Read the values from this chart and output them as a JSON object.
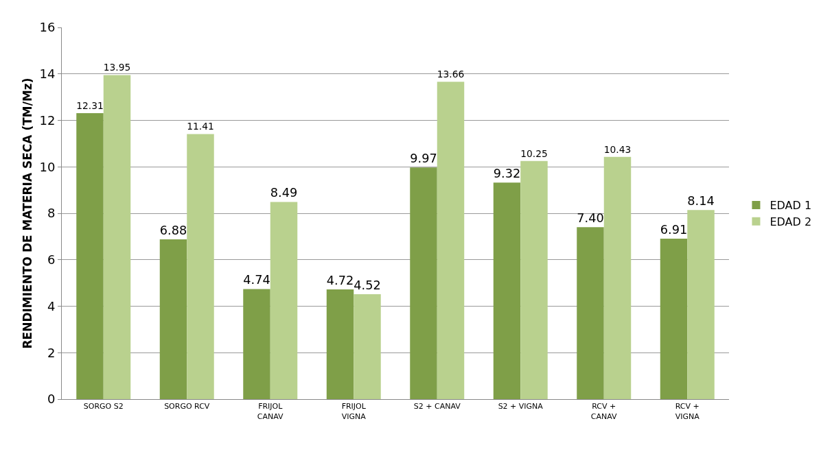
{
  "chart_data": {
    "type": "bar",
    "ylabel": "RENDIMIENTO DE MATERIA SECA (TM/Mz)",
    "categories": [
      "SORGO S2",
      "SORGO RCV",
      "FRIJOL CANAV",
      "FRIJOL VIGNA",
      "S2 + CANAV",
      "S2 + VIGNA",
      "RCV + CANAV",
      "RCV + VIGNA"
    ],
    "series": [
      {
        "name": "EDAD 1",
        "color": "#7f9f48",
        "values": [
          12.31,
          6.88,
          4.74,
          4.72,
          9.97,
          9.32,
          7.4,
          6.91
        ],
        "value_labels": [
          "12.31",
          "6.88",
          "4.74",
          "4.72",
          "9.97",
          "9.32",
          "7.40",
          "6.91"
        ]
      },
      {
        "name": "EDAD 2",
        "color": "#b9d18e",
        "values": [
          13.95,
          11.41,
          8.49,
          4.52,
          13.66,
          10.25,
          10.43,
          8.14
        ],
        "value_labels": [
          "13.95",
          "11.41",
          "8.49",
          "4.52",
          "13.66",
          "10.25",
          "10.43",
          "8.14"
        ]
      }
    ],
    "ylim": [
      0,
      16
    ],
    "yticks": [
      0,
      2,
      4,
      6,
      8,
      10,
      12,
      14,
      16
    ],
    "grid": "y",
    "legend": "right"
  }
}
